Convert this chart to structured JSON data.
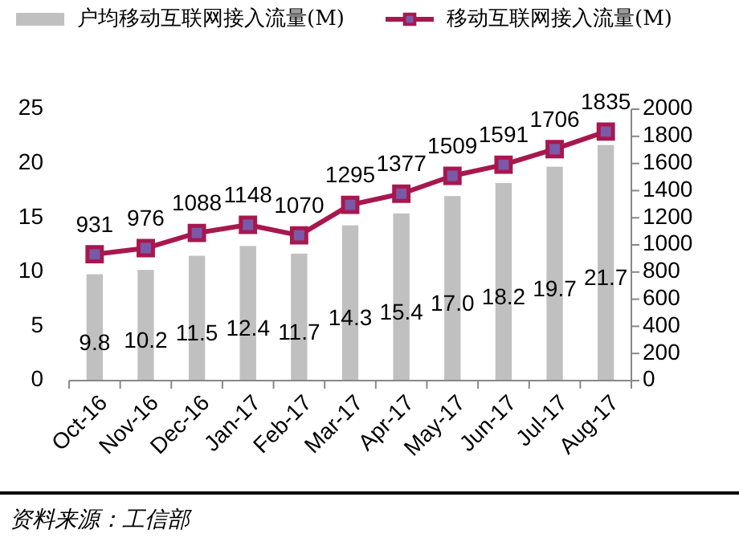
{
  "chart_data": {
    "type": "bar",
    "categories": [
      "Oct-16",
      "Nov-16",
      "Dec-16",
      "Jan-17",
      "Feb-17",
      "Mar-17",
      "Apr-17",
      "May-17",
      "Jun-17",
      "Jul-17",
      "Aug-17"
    ],
    "series": [
      {
        "name": "户均移动互联网接入流量(M)",
        "color": "#c0c0c0",
        "values": [
          9.8,
          10.2,
          11.5,
          12.4,
          11.7,
          14.3,
          15.4,
          17.0,
          18.2,
          19.7,
          21.7
        ],
        "value_labels": [
          "9.8",
          "10.2",
          "11.5",
          "12.4",
          "11.7",
          "14.3",
          "15.4",
          "17.0",
          "18.2",
          "19.7",
          "21.7"
        ]
      },
      {
        "name": "移动互联网接入流量(M)",
        "type": "line",
        "axis": "y2",
        "color": "#a8174e",
        "marker": "square",
        "values": [
          931,
          976,
          1088,
          1148,
          1070,
          1295,
          1377,
          1509,
          1591,
          1706,
          1835
        ],
        "value_labels": [
          "931",
          "976",
          "1088",
          "1148",
          "1070",
          "1295",
          "1377",
          "1509",
          "1591",
          "1706",
          "1835"
        ]
      }
    ],
    "ylim": [
      0,
      25
    ],
    "yticks": [
      0,
      5,
      10,
      15,
      20,
      25
    ],
    "y2lim": [
      0,
      2000
    ],
    "y2ticks": [
      0,
      200,
      400,
      600,
      800,
      1000,
      1200,
      1400,
      1600,
      1800,
      2000
    ],
    "legend": "top",
    "grid": false,
    "annotations": [
      "资料来源：工信部"
    ]
  }
}
